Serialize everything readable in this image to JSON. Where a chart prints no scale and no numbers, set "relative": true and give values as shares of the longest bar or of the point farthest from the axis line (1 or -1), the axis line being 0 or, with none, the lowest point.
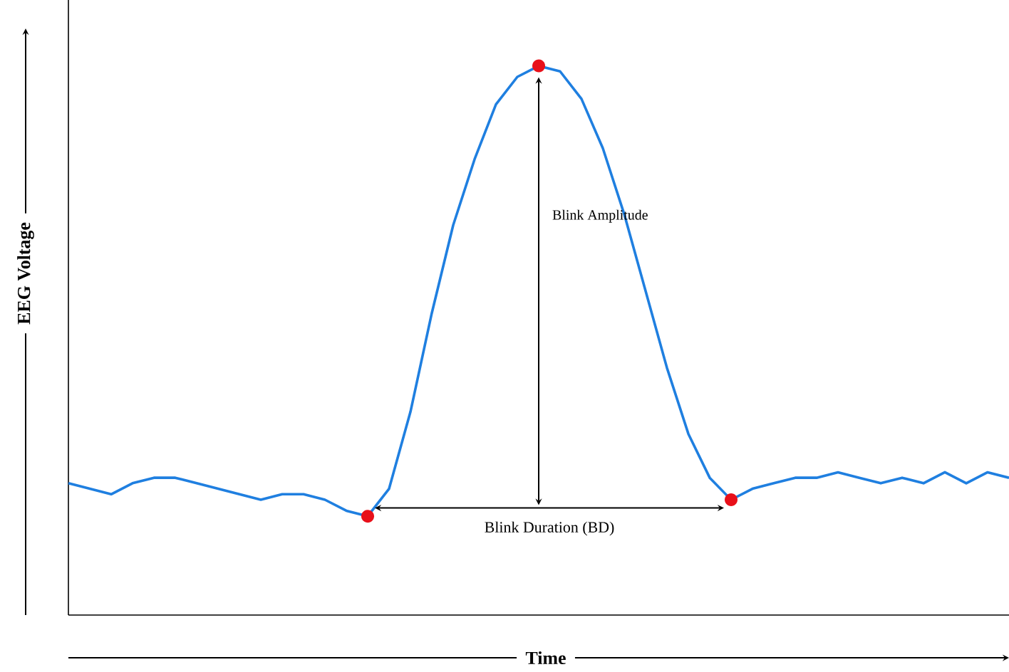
{
  "chart_data": {
    "type": "line",
    "relative": true,
    "xlabel": "Time",
    "ylabel": "EEG Voltage",
    "categories": [
      null,
      null,
      null,
      null,
      null,
      null,
      null,
      null,
      null,
      null,
      null,
      null,
      null,
      null,
      null,
      null,
      null,
      null,
      null,
      null,
      null,
      null,
      null,
      null,
      null,
      null,
      null,
      null,
      null,
      null,
      null,
      null,
      null,
      null,
      null,
      null,
      null,
      null,
      null,
      null,
      null,
      null,
      null,
      null,
      null
    ],
    "series": [
      {
        "color": "#1f7fe0",
        "values": [
          0.24,
          0.23,
          0.22,
          0.24,
          0.25,
          0.25,
          0.24,
          0.23,
          0.22,
          0.21,
          0.22,
          0.22,
          0.21,
          0.19,
          0.18,
          0.23,
          0.37,
          0.55,
          0.71,
          0.83,
          0.93,
          0.98,
          1.0,
          0.99,
          0.94,
          0.85,
          0.73,
          0.59,
          0.45,
          0.33,
          0.25,
          0.21,
          0.23,
          0.24,
          0.25,
          0.25,
          0.26,
          0.25,
          0.24,
          0.25,
          0.24,
          0.26,
          0.24,
          0.26,
          0.25
        ]
      }
    ],
    "annotations": [
      "Blink Amplitude",
      "Blink Duration (BD)"
    ]
  }
}
